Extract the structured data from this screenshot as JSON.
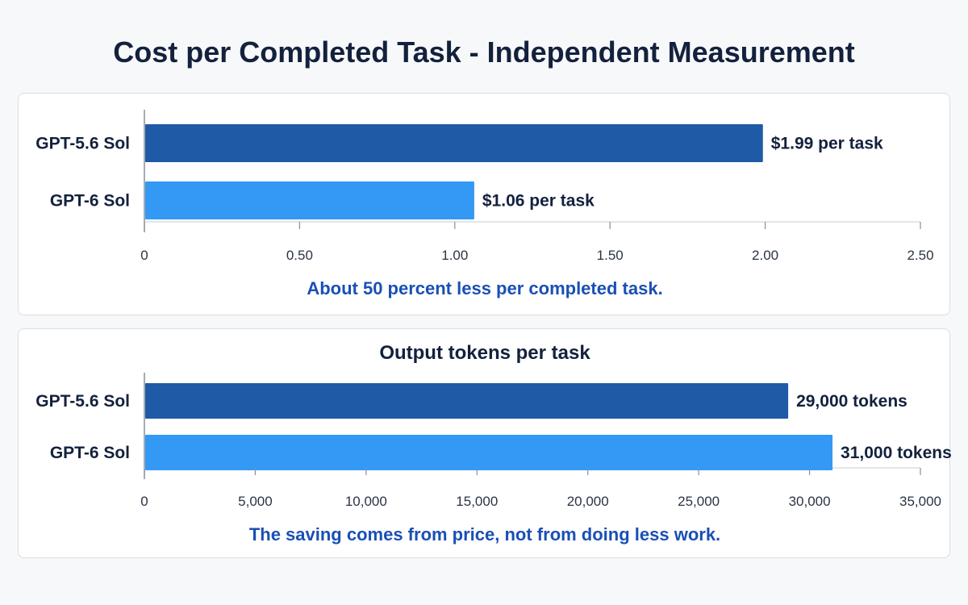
{
  "title": "Cost per Completed Task - Independent Measurement",
  "colors": {
    "dark_bar": "#1f5aa6",
    "light_bar": "#3399f5",
    "note": "#1a4fb5",
    "axis": "#8a9099"
  },
  "chart_data": [
    {
      "type": "bar",
      "orientation": "horizontal",
      "title": "",
      "categories": [
        "GPT-5.6 Sol",
        "GPT-6 Sol"
      ],
      "values": [
        1.99,
        1.06
      ],
      "value_labels": [
        "$1.99 per task",
        "$1.06 per task"
      ],
      "xlim": [
        0,
        2.5
      ],
      "ticks": [
        0,
        0.5,
        1.0,
        1.5,
        2.0,
        2.5
      ],
      "tick_labels": [
        "0",
        "0.50",
        "1.00",
        "1.50",
        "2.00",
        "2.50"
      ],
      "grid": false,
      "annotation": "About 50 percent less per completed task."
    },
    {
      "type": "bar",
      "orientation": "horizontal",
      "title": "Output tokens per task",
      "categories": [
        "GPT-5.6 Sol",
        "GPT-6 Sol"
      ],
      "values": [
        29000,
        31000
      ],
      "value_labels": [
        "29,000 tokens",
        "31,000 tokens"
      ],
      "xlim": [
        0,
        35000
      ],
      "ticks": [
        0,
        5000,
        10000,
        15000,
        20000,
        25000,
        30000,
        35000
      ],
      "tick_labels": [
        "0",
        "5,000",
        "10,000",
        "15,000",
        "20,000",
        "25,000",
        "30,000",
        "35,000"
      ],
      "grid": false,
      "annotation": "The saving comes from price, not from doing less work."
    }
  ]
}
